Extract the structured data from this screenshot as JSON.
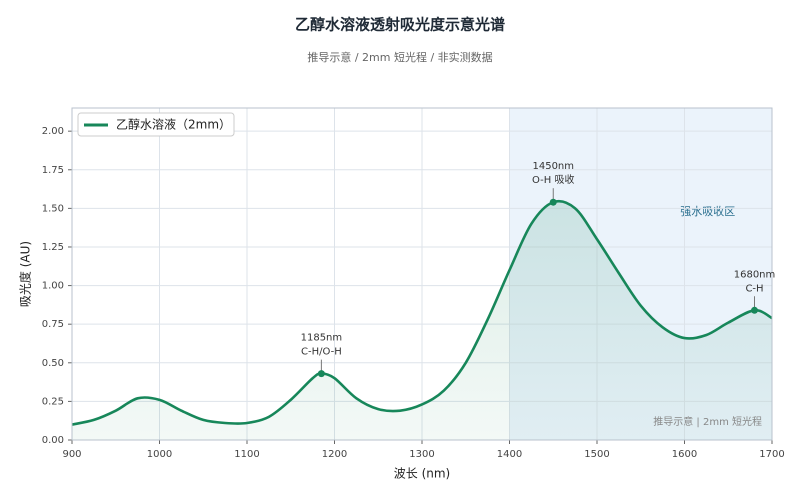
{
  "chart_data": {
    "type": "line",
    "title": "乙醇水溶液透射吸光度示意光谱",
    "subtitle": "推导示意 / 2mm 短光程 / 非实测数据",
    "x_label": "波长 (nm)",
    "y_label": "吸光度 (AU)",
    "x": [
      900,
      925,
      950,
      975,
      1000,
      1025,
      1050,
      1075,
      1100,
      1125,
      1150,
      1175,
      1185,
      1200,
      1225,
      1250,
      1275,
      1300,
      1325,
      1350,
      1375,
      1400,
      1425,
      1450,
      1475,
      1500,
      1525,
      1550,
      1575,
      1600,
      1625,
      1650,
      1680,
      1700
    ],
    "series": [
      {
        "name": "乙醇水溶液（2mm）",
        "color": "#17875a",
        "values": [
          0.1,
          0.13,
          0.19,
          0.27,
          0.26,
          0.19,
          0.13,
          0.11,
          0.11,
          0.15,
          0.26,
          0.4,
          0.43,
          0.4,
          0.27,
          0.2,
          0.19,
          0.23,
          0.32,
          0.5,
          0.78,
          1.1,
          1.4,
          1.54,
          1.5,
          1.3,
          1.08,
          0.87,
          0.73,
          0.66,
          0.68,
          0.76,
          0.84,
          0.79
        ]
      }
    ],
    "xlim": [
      900,
      1700
    ],
    "ylim": [
      0,
      2.15
    ],
    "xticks": [
      900,
      1000,
      1100,
      1200,
      1300,
      1400,
      1500,
      1600,
      1700
    ],
    "yticks": [
      {
        "value": 0,
        "label": "0.00"
      },
      {
        "value": 0.25,
        "label": "0.25"
      },
      {
        "value": 0.5,
        "label": "0.50"
      },
      {
        "value": 0.75,
        "label": "0.75"
      },
      {
        "value": 1,
        "label": "1.00"
      },
      {
        "value": 1.25,
        "label": "1.25"
      },
      {
        "value": 1.5,
        "label": "1.50"
      },
      {
        "value": 1.75,
        "label": "1.75"
      },
      {
        "value": 2,
        "label": "2.00"
      }
    ],
    "grid": true,
    "legend": "upper left",
    "highlight": {
      "xrange": [
        1400,
        1700
      ],
      "label": "强水吸收区",
      "color": "#e3eef9"
    },
    "annotations": [
      {
        "x": 1185,
        "y": 0.43,
        "lines": [
          "1185nm",
          "C-H/O-H"
        ]
      },
      {
        "x": 1450,
        "y": 1.54,
        "lines": [
          "1450nm",
          "O-H 吸收"
        ]
      },
      {
        "x": 1680,
        "y": 0.84,
        "lines": [
          "1680nm",
          "C-H"
        ]
      }
    ],
    "watermark": "推导示意 | 2mm 短光程"
  }
}
